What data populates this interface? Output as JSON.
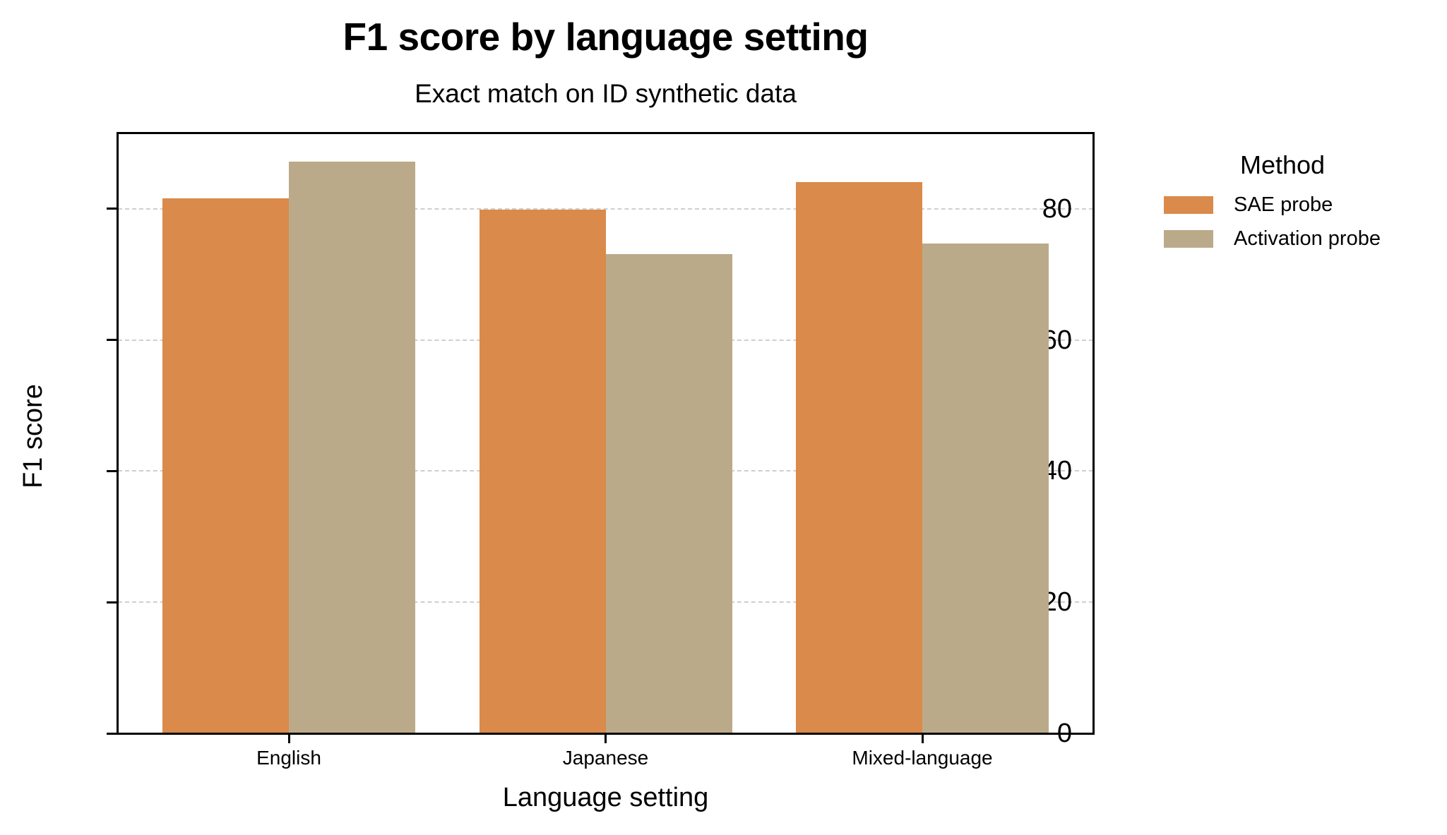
{
  "chart_data": {
    "type": "bar",
    "title": "F1 score by language setting",
    "subtitle": "Exact match on ID synthetic data",
    "xlabel": "Language setting",
    "ylabel": "F1 score",
    "categories": [
      "English",
      "Japanese",
      "Mixed-language"
    ],
    "series": [
      {
        "name": "SAE probe",
        "color": "#DA8A4A",
        "values": [
          81.6,
          79.9,
          84.1
        ]
      },
      {
        "name": "Activation probe",
        "color": "#BBAA89",
        "values": [
          87.2,
          73.1,
          74.7
        ]
      }
    ],
    "ylim": [
      0,
      91.5
    ],
    "yticks": [
      0,
      20,
      40,
      60,
      80
    ],
    "grid": {
      "axis": "y",
      "style": "dashed",
      "color": "#CFCFCF"
    },
    "legend": {
      "title": "Method",
      "position": "outside-right-top"
    }
  },
  "header": {
    "title": "F1 score by language setting",
    "subtitle": "Exact match on ID synthetic data"
  },
  "axes": {
    "x_label": "Language setting",
    "y_label": "F1 score"
  },
  "legend": {
    "title": "Method",
    "items": [
      {
        "label": "SAE probe",
        "color": "#DA8A4A"
      },
      {
        "label": "Activation probe",
        "color": "#BBAA89"
      }
    ]
  }
}
